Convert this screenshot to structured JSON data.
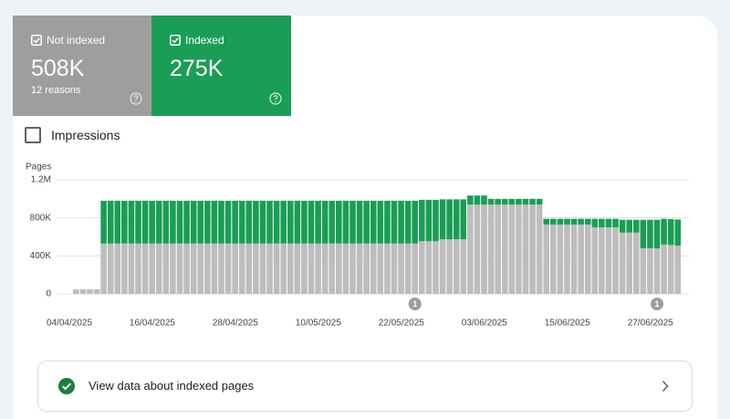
{
  "cards": [
    {
      "count": "508K",
      "detail": "12 reasons"
    },
    {
      "count": "275K"
    }
  ],
  "toggle": {
    "label": "Impressions"
  },
  "chart_data": {
    "type": "bar",
    "stacked": true,
    "y_axis_label": "Pages",
    "ylim": [
      0,
      1200000
    ],
    "yticks": [
      0,
      {
        "value": 400000,
        "label": "400K"
      },
      {
        "value": 800000,
        "label": "800K"
      },
      {
        "value": 1200000,
        "label": "1.2M"
      }
    ],
    "grid": true,
    "categories": [
      "04/04/2025",
      null,
      null,
      null,
      null,
      null,
      null,
      null,
      null,
      null,
      null,
      null,
      "16/04/2025",
      null,
      null,
      null,
      null,
      null,
      null,
      null,
      null,
      null,
      null,
      null,
      "28/04/2025",
      null,
      null,
      null,
      null,
      null,
      null,
      null,
      null,
      null,
      null,
      null,
      "10/05/2025",
      null,
      null,
      null,
      null,
      null,
      null,
      null,
      null,
      null,
      null,
      null,
      "22/05/2025",
      null,
      null,
      null,
      null,
      null,
      null,
      null,
      null,
      null,
      null,
      null,
      "03/06/2025",
      null,
      null,
      null,
      null,
      null,
      null,
      null,
      null,
      null,
      null,
      null,
      "15/06/2025",
      null,
      null,
      null,
      null,
      null,
      null,
      null,
      null,
      null,
      null,
      null,
      "27/06/2025",
      null,
      null,
      null
    ],
    "series": [
      {
        "name": "Not indexed",
        "color": "#bdbdbd",
        "values": [
          50000,
          50000,
          50000,
          50000,
          530000,
          530000,
          530000,
          530000,
          530000,
          530000,
          530000,
          530000,
          530000,
          530000,
          530000,
          530000,
          530000,
          530000,
          530000,
          530000,
          530000,
          530000,
          530000,
          530000,
          530000,
          530000,
          530000,
          530000,
          530000,
          530000,
          530000,
          530000,
          530000,
          530000,
          530000,
          530000,
          530000,
          530000,
          530000,
          530000,
          530000,
          530000,
          530000,
          530000,
          530000,
          530000,
          530000,
          530000,
          530000,
          530000,
          555000,
          555000,
          555000,
          575000,
          575000,
          575000,
          575000,
          940000,
          940000,
          940000,
          940000,
          940000,
          940000,
          940000,
          940000,
          940000,
          940000,
          940000,
          730000,
          730000,
          730000,
          730000,
          730000,
          730000,
          730000,
          700000,
          700000,
          700000,
          700000,
          645000,
          645000,
          645000,
          480000,
          480000,
          480000,
          520000,
          515000,
          508000
        ]
      },
      {
        "name": "Indexed",
        "color": "#1a9e55",
        "values": [
          0,
          0,
          0,
          0,
          450000,
          450000,
          450000,
          450000,
          450000,
          450000,
          450000,
          450000,
          450000,
          450000,
          450000,
          450000,
          450000,
          450000,
          450000,
          450000,
          450000,
          450000,
          450000,
          450000,
          450000,
          450000,
          450000,
          450000,
          450000,
          450000,
          450000,
          450000,
          450000,
          450000,
          450000,
          450000,
          450000,
          450000,
          450000,
          450000,
          450000,
          450000,
          450000,
          450000,
          450000,
          450000,
          450000,
          450000,
          450000,
          450000,
          435000,
          435000,
          435000,
          420000,
          420000,
          420000,
          420000,
          95000,
          95000,
          95000,
          60000,
          60000,
          60000,
          60000,
          60000,
          60000,
          60000,
          60000,
          60000,
          60000,
          60000,
          60000,
          60000,
          60000,
          60000,
          90000,
          90000,
          90000,
          90000,
          135000,
          135000,
          135000,
          300000,
          300000,
          300000,
          270000,
          272000,
          275000
        ]
      }
    ],
    "annotations": [
      {
        "category_index": 49,
        "text": "1"
      },
      {
        "category_index": 84,
        "text": "1"
      }
    ]
  },
  "link": {
    "label": "View data about indexed pages"
  }
}
